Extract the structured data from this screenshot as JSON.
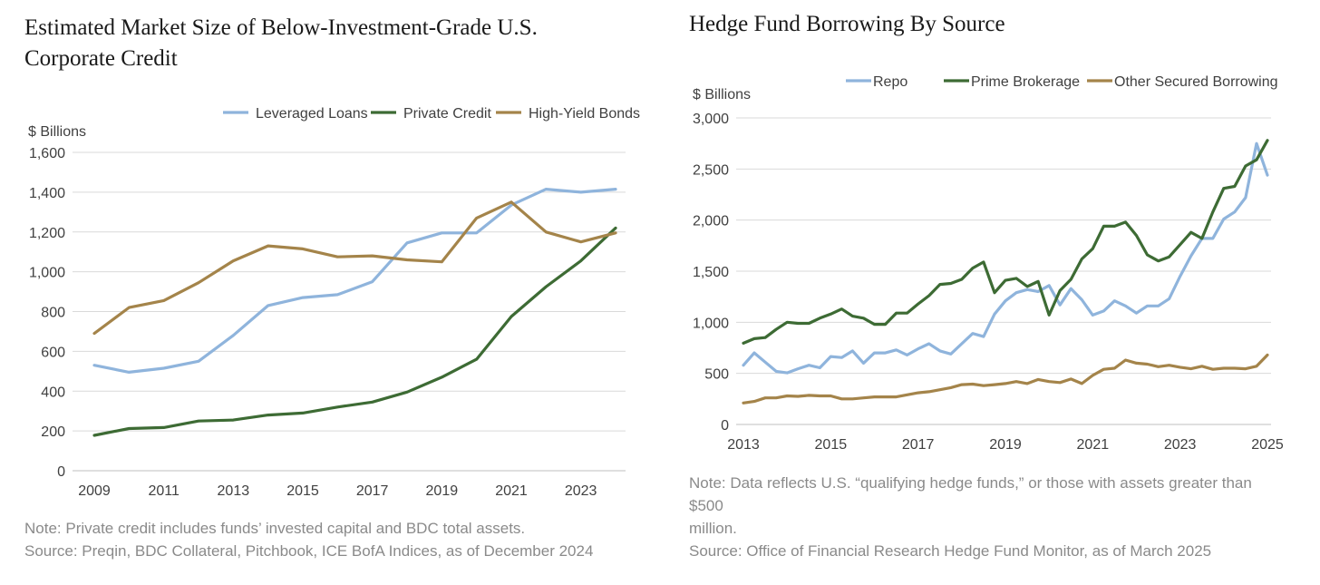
{
  "left": {
    "title_line1": "Estimated Market Size of Below-Investment-Grade U.S.",
    "title_line2": "Corporate Credit",
    "note_line1": "Note: Private credit includes funds’ invested capital and BDC total assets.",
    "note_line2": "Source: Preqin, BDC Collateral, Pitchbook, ICE BofA Indices, as of December 2024"
  },
  "right": {
    "title": "Hedge Fund Borrowing By Source",
    "note_line1": "Note: Data reflects U.S. “qualifying hedge funds,” or those with assets greater than $500",
    "note_line2": "million.",
    "note_line3": "Source: Office of Financial Research Hedge Fund Monitor, as of March 2025"
  },
  "chart_data": [
    {
      "type": "line",
      "title": "Estimated Market Size of Below-Investment-Grade U.S. Corporate Credit",
      "ylabel": "$ Billions",
      "xlabel": "",
      "ylim": [
        0,
        1600
      ],
      "yticks": [
        0,
        200,
        400,
        600,
        800,
        1000,
        1200,
        1400,
        1600
      ],
      "ytick_labels": [
        "0",
        "200",
        "400",
        "600",
        "800",
        "1,000",
        "1,200",
        "1,400",
        "1,600"
      ],
      "xlim": [
        2009,
        2024
      ],
      "xticks": [
        2009,
        2011,
        2013,
        2015,
        2017,
        2019,
        2021,
        2023
      ],
      "xtick_labels": [
        "2009",
        "2011",
        "2013",
        "2015",
        "2017",
        "2019",
        "2021",
        "2023"
      ],
      "grid": true,
      "legend": "top-right",
      "x": [
        2009,
        2010,
        2011,
        2012,
        2013,
        2014,
        2015,
        2016,
        2017,
        2018,
        2019,
        2020,
        2021,
        2022,
        2023,
        2024
      ],
      "series": [
        {
          "name": "Leveraged Loans",
          "color": "#8fb4dc",
          "values": [
            530,
            495,
            515,
            550,
            680,
            830,
            870,
            885,
            950,
            1145,
            1195,
            1195,
            1335,
            1415,
            1400,
            1415
          ]
        },
        {
          "name": "Private Credit",
          "color": "#3d6b34",
          "values": [
            178,
            212,
            217,
            250,
            255,
            280,
            290,
            320,
            345,
            395,
            470,
            560,
            775,
            925,
            1055,
            1220
          ]
        },
        {
          "name": "High-Yield Bonds",
          "color": "#a4844a",
          "values": [
            690,
            820,
            855,
            945,
            1055,
            1130,
            1115,
            1075,
            1080,
            1060,
            1050,
            1270,
            1350,
            1200,
            1150,
            1195
          ]
        }
      ]
    },
    {
      "type": "line",
      "title": "Hedge Fund Borrowing By Source",
      "ylabel": "$ Billions",
      "xlabel": "",
      "ylim": [
        0,
        3000
      ],
      "yticks": [
        0,
        500,
        1000,
        1500,
        2000,
        2500,
        3000
      ],
      "ytick_labels": [
        "0",
        "500",
        "1,000",
        "1,500",
        "2,000",
        "2,500",
        "3,000"
      ],
      "xlim": [
        2013,
        2025
      ],
      "xticks": [
        2013,
        2015,
        2017,
        2019,
        2021,
        2023,
        2025
      ],
      "xtick_labels": [
        "2013",
        "2015",
        "2017",
        "2019",
        "2021",
        "2023",
        "2025"
      ],
      "grid": true,
      "legend": "top",
      "x": [
        2013.0,
        2013.25,
        2013.5,
        2013.75,
        2014.0,
        2014.25,
        2014.5,
        2014.75,
        2015.0,
        2015.25,
        2015.5,
        2015.75,
        2016.0,
        2016.25,
        2016.5,
        2016.75,
        2017.0,
        2017.25,
        2017.5,
        2017.75,
        2018.0,
        2018.25,
        2018.5,
        2018.75,
        2019.0,
        2019.25,
        2019.5,
        2019.75,
        2020.0,
        2020.25,
        2020.5,
        2020.75,
        2021.0,
        2021.25,
        2021.5,
        2021.75,
        2022.0,
        2022.25,
        2022.5,
        2022.75,
        2023.0,
        2023.25,
        2023.5,
        2023.75,
        2024.0,
        2024.25,
        2024.5,
        2024.75,
        2025.0
      ],
      "series": [
        {
          "name": "Repo",
          "color": "#8fb4dc",
          "values": [
            580,
            700,
            610,
            520,
            505,
            545,
            580,
            555,
            665,
            655,
            720,
            600,
            700,
            700,
            730,
            680,
            740,
            790,
            720,
            690,
            790,
            890,
            860,
            1080,
            1210,
            1290,
            1320,
            1300,
            1360,
            1170,
            1330,
            1220,
            1070,
            1110,
            1210,
            1160,
            1090,
            1160,
            1160,
            1230,
            1450,
            1650,
            1820,
            1820,
            2010,
            2080,
            2220,
            2750,
            2440
          ]
        },
        {
          "name": "Prime Brokerage",
          "color": "#3d6b34",
          "values": [
            795,
            840,
            850,
            930,
            1000,
            990,
            990,
            1040,
            1080,
            1130,
            1060,
            1040,
            980,
            980,
            1090,
            1090,
            1180,
            1260,
            1370,
            1380,
            1420,
            1530,
            1590,
            1290,
            1410,
            1430,
            1350,
            1400,
            1070,
            1310,
            1420,
            1620,
            1720,
            1940,
            1940,
            1980,
            1850,
            1660,
            1600,
            1640,
            1760,
            1880,
            1820,
            2080,
            2310,
            2330,
            2530,
            2590,
            2780
          ]
        },
        {
          "name": "Other Secured Borrowing",
          "color": "#a4844a",
          "values": [
            210,
            225,
            260,
            260,
            280,
            275,
            285,
            280,
            280,
            250,
            250,
            260,
            270,
            270,
            270,
            290,
            310,
            320,
            340,
            360,
            390,
            395,
            380,
            390,
            400,
            420,
            400,
            440,
            420,
            410,
            445,
            400,
            480,
            540,
            550,
            630,
            600,
            590,
            565,
            580,
            560,
            545,
            570,
            540,
            550,
            550,
            545,
            570,
            680
          ]
        }
      ]
    }
  ]
}
